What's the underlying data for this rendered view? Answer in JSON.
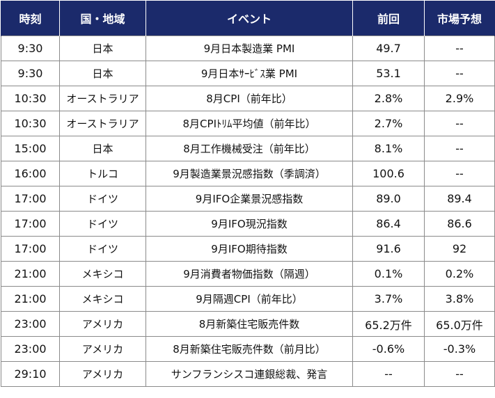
{
  "header": {
    "time": "時刻",
    "region": "国・地域",
    "event": "イベント",
    "previous": "前回",
    "forecast": "市場予想"
  },
  "rows": [
    {
      "time": "9:30",
      "region": "日本",
      "event": "9月日本製造業 PMI",
      "previous": "49.7",
      "forecast": "--"
    },
    {
      "time": "9:30",
      "region": "日本",
      "event": "9月日本ｻｰﾋﾞｽ業 PMI",
      "previous": "53.1",
      "forecast": "--"
    },
    {
      "time": "10:30",
      "region": "オーストラリア",
      "event": "8月CPI（前年比）",
      "previous": "2.8%",
      "forecast": "2.9%"
    },
    {
      "time": "10:30",
      "region": "オーストラリア",
      "event": "8月CPIﾄﾘﾑ平均値（前年比）",
      "previous": "2.7%",
      "forecast": "--"
    },
    {
      "time": "15:00",
      "region": "日本",
      "event": "8月工作機械受注（前年比）",
      "previous": "8.1%",
      "forecast": "--"
    },
    {
      "time": "16:00",
      "region": "トルコ",
      "event": "9月製造業景況感指数（季調済）",
      "previous": "100.6",
      "forecast": "--"
    },
    {
      "time": "17:00",
      "region": "ドイツ",
      "event": "9月IFO企業景況感指数",
      "previous": "89.0",
      "forecast": "89.4"
    },
    {
      "time": "17:00",
      "region": "ドイツ",
      "event": "9月IFO現況指数",
      "previous": "86.4",
      "forecast": "86.6"
    },
    {
      "time": "17:00",
      "region": "ドイツ",
      "event": "9月IFO期待指数",
      "previous": "91.6",
      "forecast": "92"
    },
    {
      "time": "21:00",
      "region": "メキシコ",
      "event": "9月消費者物価指数（隔週）",
      "previous": "0.1%",
      "forecast": "0.2%"
    },
    {
      "time": "21:00",
      "region": "メキシコ",
      "event": "9月隔週CPI（前年比）",
      "previous": "3.7%",
      "forecast": "3.8%"
    },
    {
      "time": "23:00",
      "region": "アメリカ",
      "event": "8月新築住宅販売件数",
      "previous": "65.2万件",
      "forecast": "65.0万件"
    },
    {
      "time": "23:00",
      "region": "アメリカ",
      "event": "8月新築住宅販売件数（前月比）",
      "previous": "-0.6%",
      "forecast": "-0.3%"
    },
    {
      "time": "29:10",
      "region": "アメリカ",
      "event": "サンフランシスコ連銀総裁、発言",
      "previous": "--",
      "forecast": "--"
    }
  ]
}
